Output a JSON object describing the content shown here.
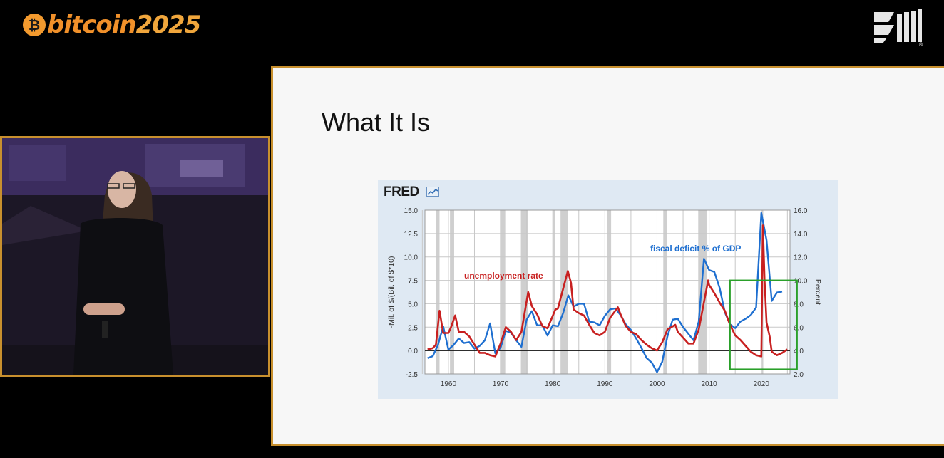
{
  "event_logo": {
    "prefix": "bitcoin",
    "year": "2025",
    "coin_symbol": "₿",
    "color": "#f0902a"
  },
  "slide": {
    "title": "What It Is",
    "fred_logo": "FRED",
    "chart_data": {
      "type": "line",
      "title": "",
      "xlabel": "",
      "ylabel_left": "-Mil. of $/(Bil. of $*10)",
      "ylabel_right": "Percent",
      "x_ticks": [
        "1960",
        "1970",
        "1980",
        "1990",
        "2000",
        "2010",
        "2020"
      ],
      "y_left_ticks": [
        "15.0",
        "12.5",
        "10.0",
        "7.5",
        "5.0",
        "2.5",
        "0.0",
        "-2.5"
      ],
      "y_right_ticks": [
        "16.0",
        "14.0",
        "12.0",
        "10.0",
        "8.0",
        "6.0",
        "4.0",
        "2.0"
      ],
      "ylim_left": [
        -2.5,
        15.0
      ],
      "ylim_right": [
        2.0,
        16.0
      ],
      "xlim": [
        1955.5,
        2025.5
      ],
      "grid": true,
      "recessions": [
        [
          1957.6,
          1958.3
        ],
        [
          1960.3,
          1961.1
        ],
        [
          1969.9,
          1970.9
        ],
        [
          1973.9,
          1975.2
        ],
        [
          1980.0,
          1980.5
        ],
        [
          1981.5,
          1982.9
        ],
        [
          1990.5,
          1991.2
        ],
        [
          2001.2,
          2001.9
        ],
        [
          2007.9,
          2009.5
        ],
        [
          2020.1,
          2020.3
        ]
      ],
      "series": [
        {
          "name": "fiscal deficit % of GDP",
          "axis": "left",
          "color": "#1e6fd0",
          "x": [
            1956,
            1957,
            1958,
            1959,
            1960,
            1961,
            1962,
            1963,
            1964,
            1965,
            1966,
            1967,
            1968,
            1969,
            1970,
            1971,
            1972,
            1973,
            1974,
            1975,
            1976,
            1977,
            1978,
            1979,
            1980,
            1981,
            1982,
            1983,
            1984,
            1985,
            1986,
            1987,
            1988,
            1989,
            1990,
            1991,
            1992,
            1993,
            1994,
            1995,
            1996,
            1997,
            1998,
            1999,
            2000,
            2001,
            2002,
            2003,
            2004,
            2005,
            2006,
            2007,
            2008,
            2009,
            2010,
            2011,
            2012,
            2013,
            2014,
            2015,
            2016,
            2017,
            2018,
            2019,
            2020,
            2021,
            2022,
            2023,
            2024
          ],
          "y": [
            -0.8,
            -0.6,
            0.6,
            2.6,
            0.1,
            0.6,
            1.3,
            0.8,
            0.9,
            0.2,
            0.5,
            1.1,
            2.9,
            -0.3,
            0.3,
            2.1,
            1.9,
            1.1,
            0.4,
            3.3,
            4.2,
            2.7,
            2.7,
            1.6,
            2.7,
            2.6,
            4.0,
            5.9,
            4.7,
            5.0,
            5.0,
            3.1,
            3.0,
            2.7,
            3.7,
            4.4,
            4.5,
            3.8,
            2.8,
            2.2,
            1.3,
            0.3,
            -0.8,
            -1.3,
            -2.3,
            -1.2,
            1.5,
            3.3,
            3.4,
            2.5,
            1.8,
            1.1,
            3.1,
            9.8,
            8.6,
            8.4,
            6.7,
            4.1,
            2.8,
            2.4,
            3.1,
            3.4,
            3.8,
            4.6,
            14.7,
            11.8,
            5.3,
            6.2,
            6.3
          ]
        },
        {
          "name": "unemployment rate",
          "axis": "right",
          "color": "#c82020",
          "x": [
            1956,
            1957,
            1957.6,
            1958.3,
            1959,
            1960,
            1960.5,
            1961.3,
            1962,
            1963,
            1964,
            1965,
            1966,
            1967,
            1968,
            1969,
            1970,
            1971,
            1972,
            1973,
            1974,
            1975.3,
            1976,
            1977,
            1978,
            1979,
            1980.5,
            1981,
            1982.9,
            1983.5,
            1984,
            1985,
            1986,
            1987,
            1988,
            1989,
            1990,
            1991,
            1992.5,
            1993,
            1994,
            1995,
            1996,
            1997,
            1998,
            1999,
            2000,
            2001,
            2002,
            2003.5,
            2004,
            2005,
            2006,
            2007,
            2008,
            2009.8,
            2010,
            2011,
            2012,
            2013,
            2014,
            2015,
            2016,
            2017,
            2018,
            2019,
            2020.0,
            2020.3,
            2020.6,
            2021,
            2021.6,
            2022,
            2023,
            2024,
            2025
          ],
          "y": [
            4.1,
            4.2,
            4.5,
            7.4,
            5.5,
            5.5,
            6.0,
            7.0,
            5.6,
            5.6,
            5.2,
            4.5,
            3.8,
            3.8,
            3.6,
            3.5,
            4.6,
            6.0,
            5.6,
            4.9,
            5.6,
            9.0,
            7.8,
            7.1,
            6.1,
            5.9,
            7.5,
            7.6,
            10.8,
            9.8,
            7.5,
            7.2,
            7.0,
            6.2,
            5.5,
            5.3,
            5.6,
            6.8,
            7.7,
            7.1,
            6.1,
            5.6,
            5.4,
            4.9,
            4.5,
            4.2,
            4.0,
            4.7,
            5.8,
            6.2,
            5.6,
            5.1,
            4.6,
            4.6,
            5.8,
            10.0,
            9.6,
            8.9,
            8.1,
            7.4,
            6.2,
            5.3,
            4.9,
            4.4,
            3.9,
            3.6,
            3.5,
            14.7,
            10.2,
            6.4,
            5.2,
            3.9,
            3.6,
            3.8,
            4.1
          ]
        }
      ],
      "zero_line": {
        "axis": "left",
        "value": 0
      },
      "annotations": {
        "deficit_label": "fiscal deficit % of GDP",
        "unemployment_label": "unemployment rate",
        "highlight_box": {
          "x_range": [
            2014.0,
            2027.0
          ],
          "y_left_range": [
            -2.0,
            7.5
          ],
          "color": "#2aa02a"
        }
      }
    }
  }
}
